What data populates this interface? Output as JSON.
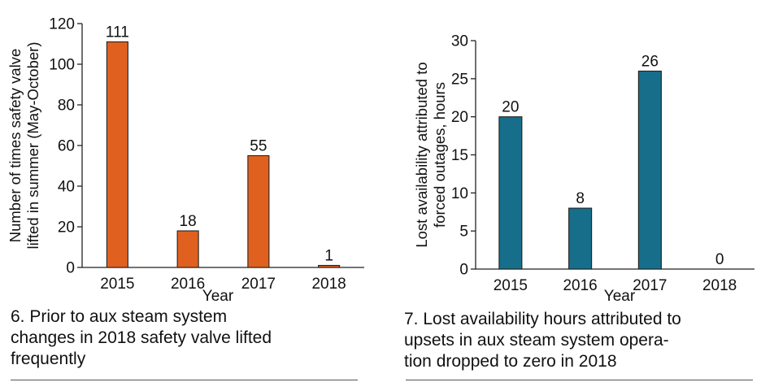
{
  "figures": [
    {
      "caption_lines": [
        "6. Prior to aux steam system",
        "changes in 2018 safety valve lifted",
        "frequently"
      ]
    },
    {
      "caption_lines": [
        "7. Lost availability hours attributed to",
        "upsets in aux steam system opera-",
        "tion dropped to zero in 2018"
      ]
    }
  ],
  "chart_data": [
    {
      "type": "bar",
      "categories": [
        "2015",
        "2016",
        "2017",
        "2018"
      ],
      "values": [
        111,
        18,
        55,
        1
      ],
      "data_labels": [
        "111",
        "18",
        "55",
        "1"
      ],
      "xlabel": "Year",
      "ylabel": "Number of times safety valve lifted in summer (May-October)",
      "ylabel_lines": [
        "Number of times safety valve",
        "lifted in summer (May-October)"
      ],
      "ylim": [
        0,
        120
      ],
      "yticks": [
        0,
        20,
        40,
        60,
        80,
        100,
        120
      ],
      "bar_color": "#e0611f",
      "grid": false
    },
    {
      "type": "bar",
      "categories": [
        "2015",
        "2016",
        "2017",
        "2018"
      ],
      "values": [
        20,
        8,
        26,
        0
      ],
      "data_labels": [
        "20",
        "8",
        "26",
        "0"
      ],
      "xlabel": "Year",
      "ylabel": "Lost availability attributed to forced outages, hours",
      "ylabel_lines": [
        "Lost availability attributed to",
        "forced outages, hours"
      ],
      "ylim": [
        0,
        30
      ],
      "yticks": [
        0,
        5,
        10,
        15,
        20,
        25,
        30
      ],
      "bar_color": "#176e8b",
      "grid": false
    }
  ]
}
